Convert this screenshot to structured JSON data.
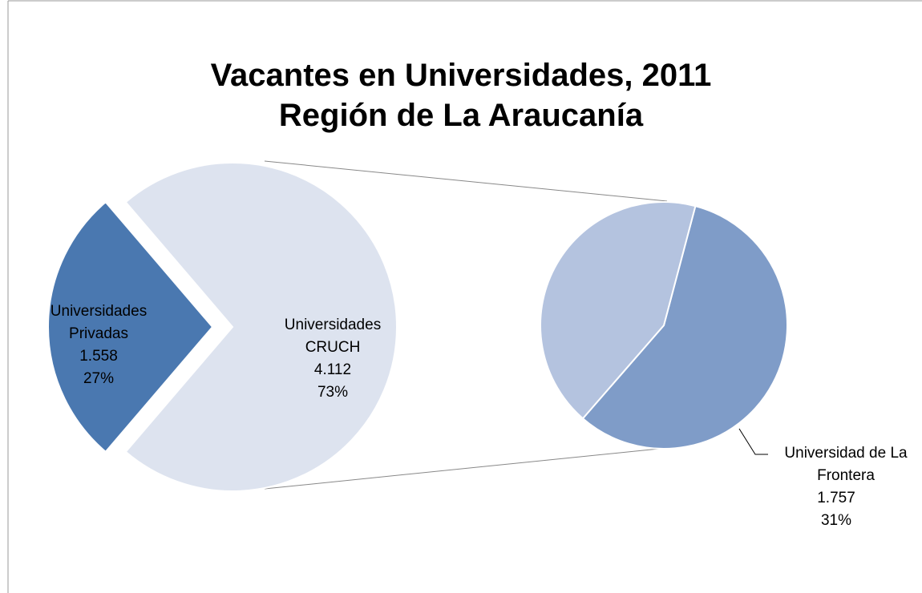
{
  "chart_data": {
    "type": "pie-of-pie",
    "title": "Vacantes en Universidades, 2011",
    "subtitle": "Región de La Araucanía",
    "categories": [
      "Universidades Privadas",
      "Universidades CRUCH"
    ],
    "values": [
      1558,
      4112
    ],
    "value_labels": [
      "1.558",
      "4.112"
    ],
    "percent_labels": [
      "27%",
      "73%"
    ],
    "colors": [
      "#4a78b0",
      "#dde3ef"
    ],
    "secondary": {
      "categories": [
        null,
        "Universidad de La Frontera"
      ],
      "values": [
        2355,
        1757
      ],
      "value_labels": [
        null,
        "1.757"
      ],
      "percent_labels": [
        null,
        "31%"
      ],
      "colors": [
        "#7f9cc8",
        "#b4c3df"
      ]
    }
  }
}
